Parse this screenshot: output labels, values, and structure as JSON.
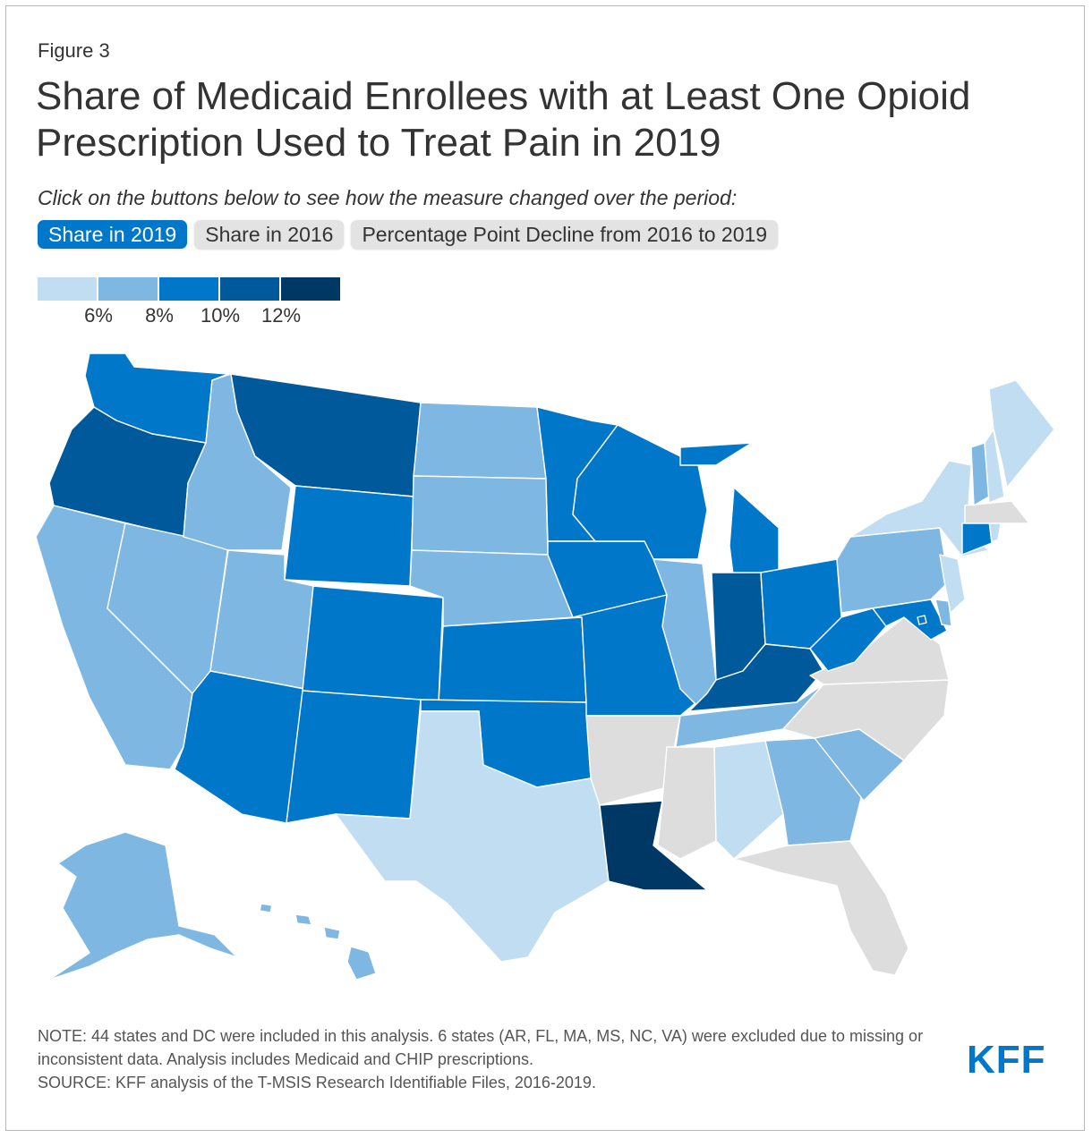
{
  "figure_label": "Figure 3",
  "title": "Share of Medicaid Enrollees with at Least One Opioid Prescription Used to Treat Pain in 2019",
  "subtitle": "Click on the buttons below to see how the measure changed over the period:",
  "buttons": [
    {
      "label": "Share in 2019",
      "active": true
    },
    {
      "label": "Share in 2016",
      "active": false
    },
    {
      "label": "Percentage Point Decline from 2016 to 2019",
      "active": false
    }
  ],
  "legend": {
    "colors": [
      "#c0ddf2",
      "#7db7e2",
      "#0077c8",
      "#00599a",
      "#003865"
    ],
    "labels": [
      "6%",
      "8%",
      "10%",
      "12%"
    ]
  },
  "colors": {
    "excluded": "#dddddd",
    "accent": "#0077c8"
  },
  "chart_data": {
    "type": "choropleth",
    "title": "Share of Medicaid Enrollees with at Least One Opioid Prescription Used to Treat Pain in 2019",
    "bins": [
      "<6%",
      "6-8%",
      "8-10%",
      "10-12%",
      ">=12%"
    ],
    "state_bins": {
      "WA": 2,
      "OR": 3,
      "CA": 1,
      "NV": 1,
      "ID": 1,
      "MT": 3,
      "WY": 2,
      "UT": 1,
      "AZ": 2,
      "CO": 2,
      "NM": 2,
      "ND": 1,
      "SD": 1,
      "NE": 1,
      "KS": 2,
      "OK": 2,
      "TX": 0,
      "MN": 2,
      "IA": 2,
      "MO": 2,
      "AR": null,
      "LA": 4,
      "WI": 2,
      "IL": 1,
      "MI": 2,
      "IN": 3,
      "OH": 2,
      "KY": 3,
      "TN": 1,
      "MS": null,
      "AL": 0,
      "GA": 1,
      "FL": null,
      "SC": 1,
      "NC": null,
      "VA": null,
      "WV": 2,
      "MD": 2,
      "DE": 1,
      "PA": 1,
      "NJ": 0,
      "NY": 0,
      "CT": 2,
      "RI": 0,
      "MA": null,
      "VT": 1,
      "NH": 0,
      "ME": 0,
      "AK": 1,
      "HI": 1,
      "DC": 2
    },
    "excluded_states": [
      "AR",
      "FL",
      "MA",
      "MS",
      "NC",
      "VA"
    ]
  },
  "notes": [
    "NOTE: 44 states and DC were included in this analysis. 6 states (AR, FL, MA, MS, NC, VA) were excluded due to missing or inconsistent data. Analysis includes Medicaid and CHIP prescriptions.",
    "SOURCE: KFF analysis of the T-MSIS Research Identifiable Files, 2016-2019."
  ],
  "logo_text": "KFF"
}
